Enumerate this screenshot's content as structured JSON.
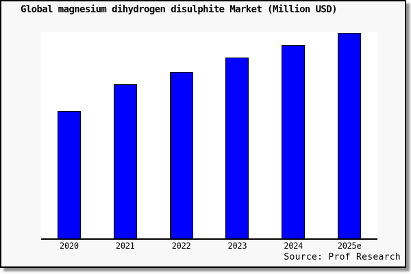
{
  "chart_data": {
    "type": "bar",
    "title": "Global magnesium dihydrogen disulphite Market (Million USD)",
    "categories": [
      "2020",
      "2021",
      "2022",
      "2023",
      "2024",
      "2025e"
    ],
    "values": [
      62,
      75,
      81,
      88,
      94,
      100
    ],
    "value_note": "no y-axis or data labels shown; values estimated from bar heights, max bar = 100",
    "xlabel": "",
    "ylabel": "",
    "ylim": [
      0,
      100
    ],
    "grid": false,
    "legend_visible": false
  },
  "source_note": "Source: Prof Research",
  "colors": {
    "canvas_background": "#f8f8f8",
    "plot_background": "#ffffff",
    "bar_fill": "#0000ff",
    "bar_border": "#000000",
    "axis_line": "#000000",
    "frame_border": "#000000",
    "text": "#000000"
  }
}
